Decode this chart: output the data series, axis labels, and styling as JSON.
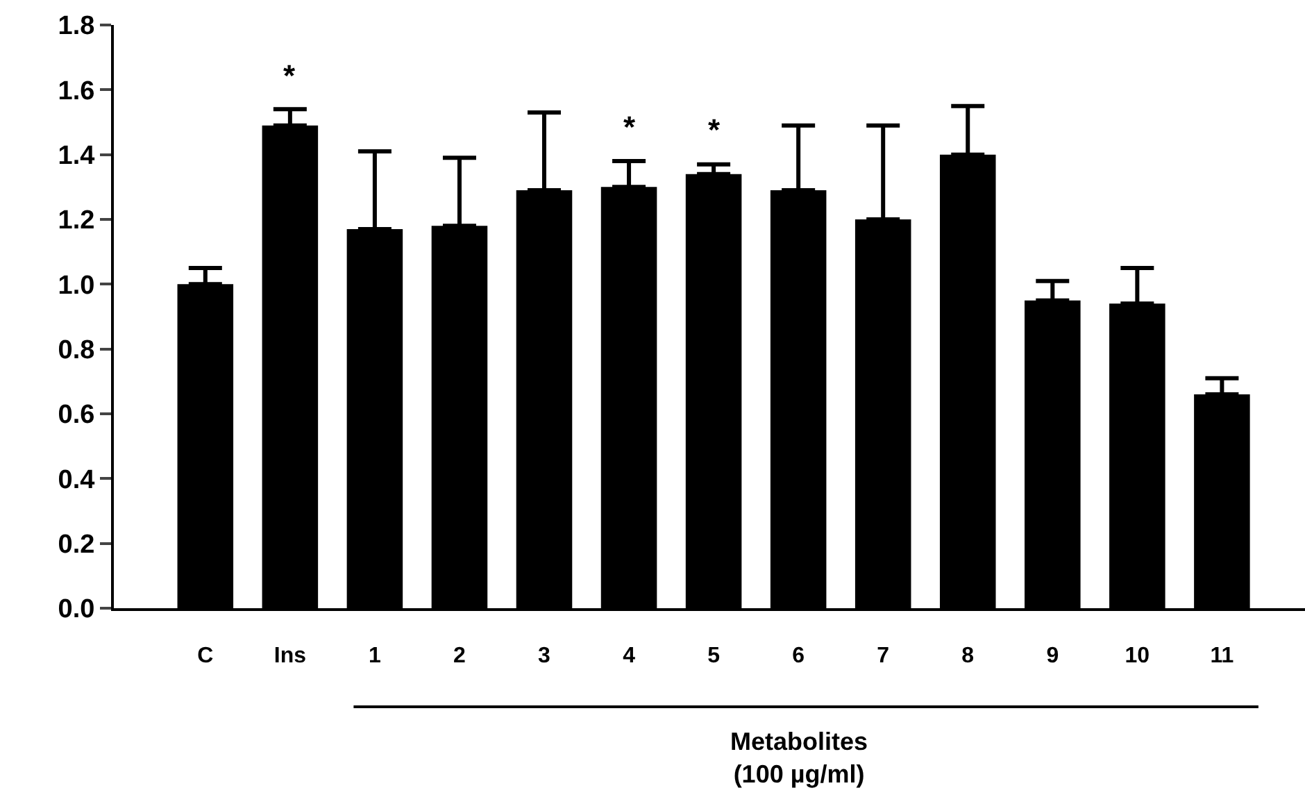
{
  "chart_data": {
    "type": "bar",
    "categories": [
      "C",
      "Ins",
      "1",
      "2",
      "3",
      "4",
      "5",
      "6",
      "7",
      "8",
      "9",
      "10",
      "11"
    ],
    "values": [
      1.0,
      1.49,
      1.17,
      1.18,
      1.29,
      1.3,
      1.34,
      1.29,
      1.2,
      1.4,
      0.95,
      0.94,
      0.66
    ],
    "errors": [
      [
        1.0,
        1.05
      ],
      [
        1.49,
        1.54
      ],
      [
        1.17,
        1.41
      ],
      [
        1.18,
        1.39
      ],
      [
        1.29,
        1.53
      ],
      [
        1.3,
        1.38
      ],
      [
        1.34,
        1.37
      ],
      [
        1.29,
        1.49
      ],
      [
        1.2,
        1.49
      ],
      [
        1.4,
        1.55
      ],
      [
        0.95,
        1.01
      ],
      [
        0.94,
        1.05
      ],
      [
        0.66,
        0.71
      ]
    ],
    "color": "#000000",
    "xlabel": "Metabolites\n(100 µg/ml)",
    "ylim": [
      0,
      1.8
    ],
    "yticks": [
      {
        "value": 0,
        "label": "0.0"
      },
      0.2,
      0.4,
      0.6,
      0.8,
      {
        "value": 1,
        "label": "1.0"
      },
      1.2,
      1.4,
      1.6,
      1.8
    ],
    "value_labels": [
      null,
      "*",
      null,
      null,
      null,
      "*",
      "*",
      null,
      null,
      null,
      null,
      null,
      null
    ]
  }
}
